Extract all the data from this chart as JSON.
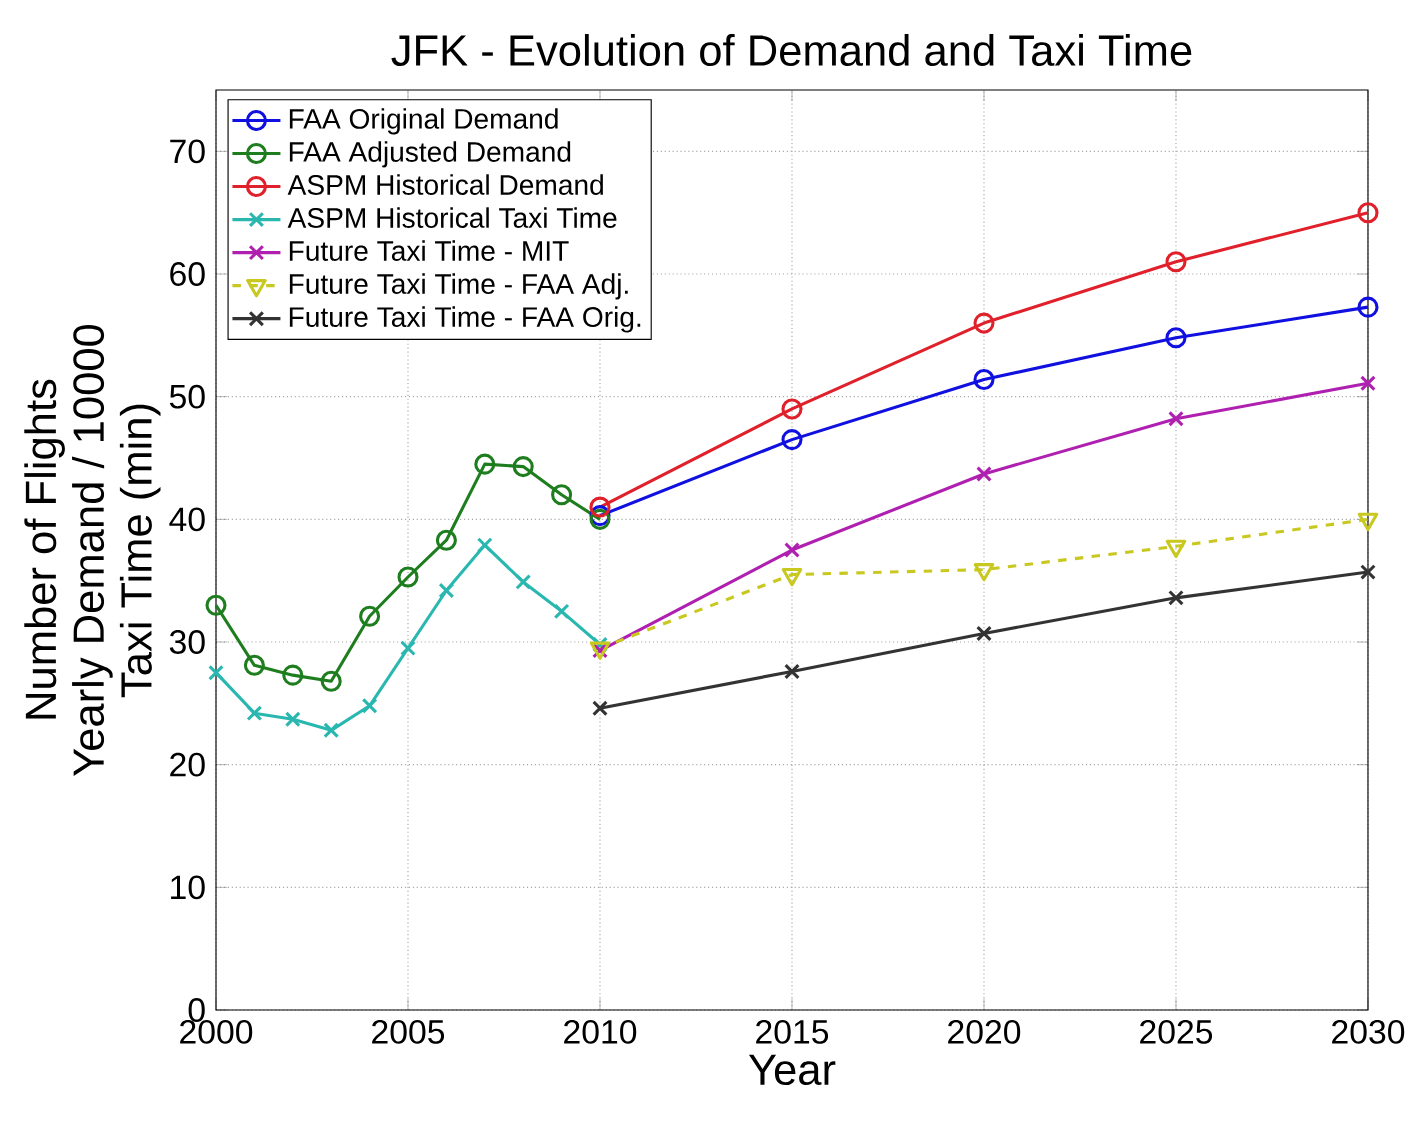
{
  "chart_data": {
    "type": "line",
    "title": "JFK - Evolution of Demand and Taxi Time",
    "xlabel": "Year",
    "ylabel": [
      "Number of Flights",
      "Yearly Demand / 10000",
      "Taxi Time (min)"
    ],
    "xlim": [
      2000,
      2030
    ],
    "xticks": [
      2000,
      2005,
      2010,
      2015,
      2020,
      2025,
      2030
    ],
    "ylim": [
      0,
      75
    ],
    "yticks": [
      0,
      10,
      20,
      30,
      40,
      50,
      60,
      70
    ],
    "grid": true,
    "legend": "top left",
    "series": [
      {
        "name": "FAA Original Demand",
        "color": "#1010e0",
        "marker": "circle",
        "line_style": "solid",
        "x": [
          2010,
          2015,
          2020,
          2025,
          2030
        ],
        "values": [
          40.3,
          46.5,
          51.4,
          54.8,
          57.3
        ]
      },
      {
        "name": "FAA Adjusted Demand",
        "color": "#1e7d1e",
        "marker": "circle",
        "line_style": "solid",
        "x": [
          2000,
          2001,
          2002,
          2003,
          2004,
          2005,
          2006,
          2007,
          2008,
          2009,
          2010
        ],
        "values": [
          33,
          28.1,
          27.3,
          26.8,
          32.1,
          35.3,
          38.3,
          44.5,
          44.3,
          42,
          40
        ]
      },
      {
        "name": "ASPM Historical Demand",
        "color": "#e0202a",
        "marker": "circle",
        "line_style": "solid",
        "x": [
          2010,
          2015,
          2020,
          2025,
          2030
        ],
        "values": [
          41,
          49,
          56,
          61,
          65
        ]
      },
      {
        "name": "ASPM Historical Taxi Time",
        "color": "#2ab7b0",
        "marker": "cross",
        "line_style": "solid",
        "x": [
          2000,
          2001,
          2002,
          2003,
          2004,
          2005,
          2006,
          2007,
          2008,
          2009,
          2010
        ],
        "values": [
          27.5,
          24.2,
          23.7,
          22.8,
          24.8,
          29.5,
          34.2,
          37.9,
          34.9,
          32.5,
          29.8
        ]
      },
      {
        "name": "Future Taxi Time - MIT",
        "color": "#b020b0",
        "marker": "cross",
        "line_style": "solid",
        "x": [
          2010,
          2015,
          2020,
          2025,
          2030
        ],
        "values": [
          29.3,
          37.5,
          43.7,
          48.2,
          51.1
        ]
      },
      {
        "name": "Future Taxi Time - FAA Adj.",
        "color": "#c8c820",
        "marker": "triangle",
        "line_style": "dashed",
        "x": [
          2010,
          2015,
          2020,
          2025,
          2030
        ],
        "values": [
          29.5,
          35.5,
          35.9,
          37.8,
          40
        ]
      },
      {
        "name": "Future Taxi Time - FAA Orig.",
        "color": "#333333",
        "marker": "cross",
        "line_style": "solid",
        "x": [
          2010,
          2015,
          2020,
          2025,
          2030
        ],
        "values": [
          24.6,
          27.6,
          30.7,
          33.6,
          35.7
        ]
      }
    ]
  }
}
